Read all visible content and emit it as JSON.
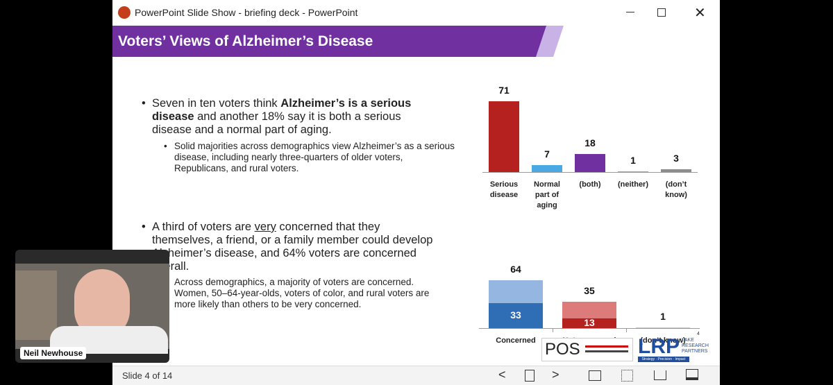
{
  "window": {
    "title": "PowerPoint Slide Show  -  briefing deck - PowerPoint"
  },
  "slide": {
    "title": "Voters’ Views of Alzheimer’s Disease",
    "bullets": [
      {
        "text": [
          "Seven in ten voters think ",
          "Alzheimer’s is a serious disease",
          " and another 18% say it is both a serious disease and a normal part of aging."
        ],
        "sub": "Solid majorities across demographics view Alzheimer’s as a serious disease, including nearly three-quarters of older voters, Republicans, and rural voters."
      },
      {
        "text": [
          "A third of voters are ",
          "very",
          " concerned that they themselves, a friend, or a family member could develop Alzheimer’s disease, and 64% voters are concerned overall."
        ],
        "sub": "Across demographics, a majority of voters are concerned. Women, 50–64-year-olds, voters of color, and rural voters are more likely than others to be very concerned."
      }
    ],
    "number": "4",
    "logos": {
      "pos": "POS",
      "lrp": "LRP",
      "lrp_name": "LAKE RESEARCH PARTNERS",
      "lrp_tagline": "Strategy · Precision · Impact"
    }
  },
  "chart_data": [
    {
      "type": "bar",
      "categories": [
        "Serious disease",
        "Normal part of aging",
        "(both)",
        "(neither)",
        "(don’t know)"
      ],
      "values": [
        71,
        7,
        18,
        1,
        3
      ],
      "color": [
        "#b5211f",
        "#4aa9e3",
        "#7030a0",
        "#a6a6a6",
        "#8c8c8c"
      ]
    },
    {
      "type": "stacked_bar",
      "categories": [
        "Concerned",
        "Not concerned",
        "(don’t know)"
      ],
      "series": [
        {
          "values": [
            33,
            13,
            null
          ],
          "color": [
            "#2f6db5",
            "#b5211f",
            "#a6a6a6"
          ]
        },
        {
          "values": [
            31,
            22,
            1
          ],
          "color": [
            "#94b6e0",
            "#dd7b7b",
            "#c8c8c8"
          ]
        }
      ],
      "totals": [
        64,
        35,
        1
      ]
    }
  ],
  "status": {
    "slide": "Slide 4 of 14"
  },
  "video": {
    "name": "Neil Newhouse"
  }
}
